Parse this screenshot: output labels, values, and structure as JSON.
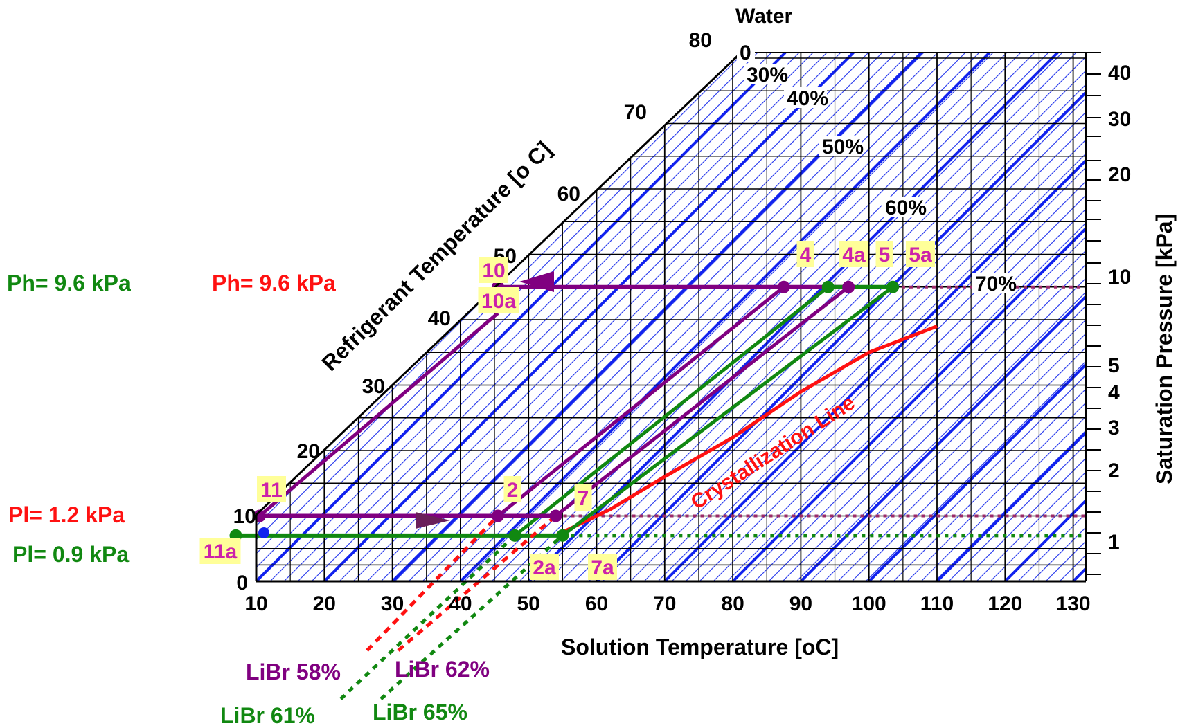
{
  "chart_data": {
    "type": "line",
    "chart_kind": "Dühring chart (LiBr-water solution)",
    "xlabel": "Solution Temperature [oC]",
    "ylabel_left": "Refrigerant Temperature [o C]",
    "ylabel_right": "Saturation Pressure [kPa]",
    "water_label": "Water",
    "x_ticks": [
      "10",
      "20",
      "30",
      "40",
      "50",
      "60",
      "70",
      "80",
      "90",
      "100",
      "110",
      "120",
      "130"
    ],
    "xlim": [
      10,
      130
    ],
    "ylim": [
      0,
      80
    ],
    "refrigerant_ticks": [
      "0",
      "10",
      "20",
      "30",
      "40",
      "50",
      "60",
      "70",
      "80"
    ],
    "pressure_ticks": [
      {
        "label": "1",
        "value": 0.9
      },
      {
        "label": "2",
        "value": 1.9
      },
      {
        "label": "3",
        "value": 3.0
      },
      {
        "label": "4",
        "value": 4.2
      },
      {
        "label": "5",
        "value": 5.0
      },
      {
        "label": "10",
        "value": 9.6
      },
      {
        "label": "20",
        "value": 19
      },
      {
        "label": "30",
        "value": 30
      },
      {
        "label": "40",
        "value": 41
      }
    ],
    "concentration_labels": [
      "0",
      "30%",
      "40%",
      "50%",
      "60%",
      "70%"
    ],
    "pressure_annotations": [
      {
        "text": "Ph= 9.6 kPa",
        "color": "#118811"
      },
      {
        "text": "Ph= 9.6 kPa",
        "color": "#ff1111"
      },
      {
        "text": "Pl= 1.2 kPa",
        "color": "#ff1111"
      },
      {
        "text": "Pl= 0.9 kPa",
        "color": "#118811"
      }
    ],
    "crystallization_label": "Crystallization Line",
    "crystallization_line": [
      [
        54,
        7
      ],
      [
        62,
        11
      ],
      [
        70,
        16
      ],
      [
        80,
        22
      ],
      [
        90,
        29
      ],
      [
        100,
        35
      ],
      [
        110,
        39
      ]
    ],
    "series": [
      {
        "name": "LiBr 58%",
        "color": "#800080",
        "x": [
          45.5,
          87.5
        ],
        "y": [
          10,
          45
        ]
      },
      {
        "name": "LiBr 62%",
        "color": "#800080",
        "x": [
          54,
          97
        ],
        "y": [
          10,
          45
        ]
      },
      {
        "name": "LiBr 61%",
        "color": "#118811",
        "x": [
          48,
          94
        ],
        "y": [
          7,
          45
        ]
      },
      {
        "name": "LiBr 65%",
        "color": "#118811",
        "x": [
          55,
          103.5
        ],
        "y": [
          7,
          45
        ]
      }
    ],
    "cycle_purple": [
      {
        "label": "11",
        "x": 10.5,
        "y": 10
      },
      {
        "label": "2",
        "x": 45.5,
        "y": 10
      },
      {
        "label": "7",
        "x": 54,
        "y": 10
      },
      {
        "label": "4",
        "x": 87.5,
        "y": 45
      },
      {
        "label": "5",
        "x": 97,
        "y": 45
      },
      {
        "label": "10",
        "x": 45.5,
        "y": 45
      },
      {
        "label": "10a",
        "x": 45.5,
        "y": 41
      }
    ],
    "cycle_green": [
      {
        "label": "11a",
        "x": 7,
        "y": 7
      },
      {
        "label": "2a",
        "x": 48,
        "y": 7
      },
      {
        "label": "7a",
        "x": 55,
        "y": 7
      },
      {
        "label": "4a",
        "x": 94,
        "y": 45
      },
      {
        "label": "5a",
        "x": 103.5,
        "y": 45
      }
    ]
  }
}
